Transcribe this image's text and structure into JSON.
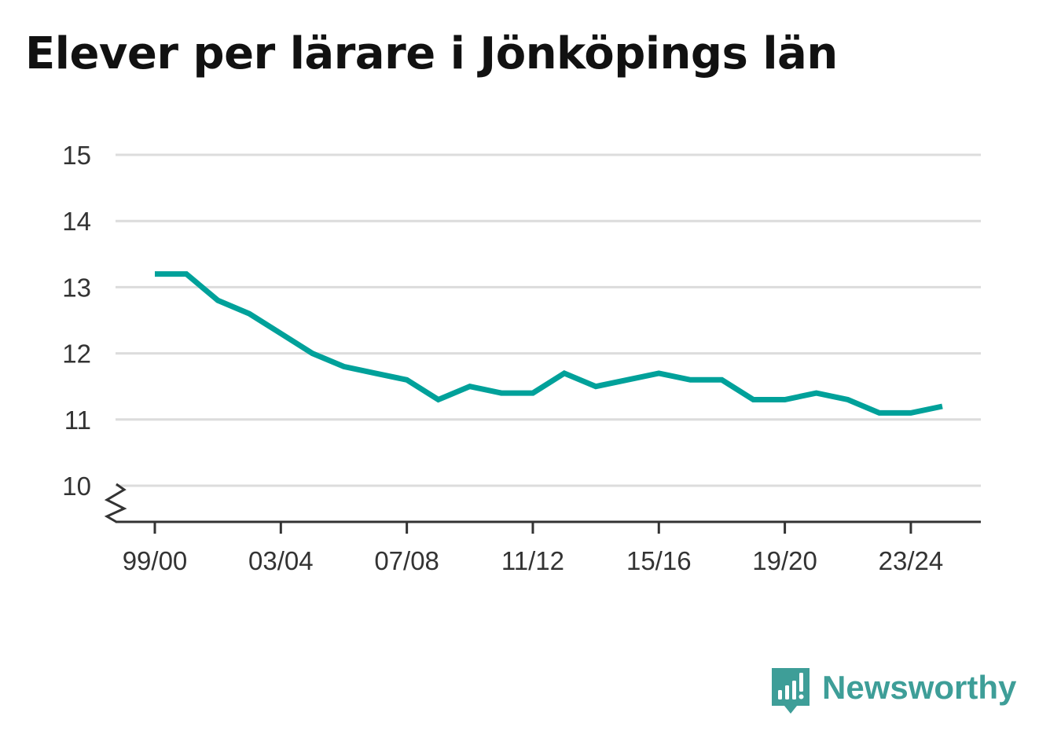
{
  "chart_data": {
    "type": "line",
    "title": "Elever per lärare i Jönköpings län",
    "xlabel": "",
    "ylabel": "",
    "ylim": [
      10,
      15
    ],
    "y_ticks": [
      10,
      11,
      12,
      13,
      14,
      15
    ],
    "y_tick_labels": [
      "10",
      "11",
      "12",
      "13",
      "14",
      "15"
    ],
    "y_axis_break": true,
    "grid": true,
    "x_tick_labels": [
      "99/00",
      "03/04",
      "07/08",
      "11/12",
      "15/16",
      "19/20",
      "23/24"
    ],
    "x_tick_positions": [
      "99/00",
      "03/04",
      "07/08",
      "11/12",
      "15/16",
      "19/20",
      "23/24"
    ],
    "series": [
      {
        "color": "#00a19a",
        "x": [
          "99/00",
          "00/01",
          "01/02",
          "02/03",
          "03/04",
          "04/05",
          "05/06",
          "06/07",
          "07/08",
          "08/09",
          "09/10",
          "10/11",
          "11/12",
          "12/13",
          "13/14",
          "14/15",
          "15/16",
          "16/17",
          "17/18",
          "18/19",
          "19/20",
          "20/21",
          "21/22",
          "22/23",
          "23/24",
          "24/25"
        ],
        "values": [
          13.2,
          13.2,
          12.8,
          12.6,
          12.3,
          12.0,
          11.8,
          11.7,
          11.6,
          11.3,
          11.5,
          11.4,
          11.4,
          11.7,
          11.5,
          11.6,
          11.7,
          11.6,
          11.6,
          11.3,
          11.3,
          11.4,
          11.3,
          11.1,
          11.1,
          11.2
        ]
      }
    ]
  },
  "brand": {
    "name": "Newsworthy",
    "icon": "newsworthy-logo-icon",
    "color": "#3e9e98"
  },
  "colors": {
    "grid": "#dcdcdc",
    "axis": "#333333",
    "line": "#00a19a"
  }
}
